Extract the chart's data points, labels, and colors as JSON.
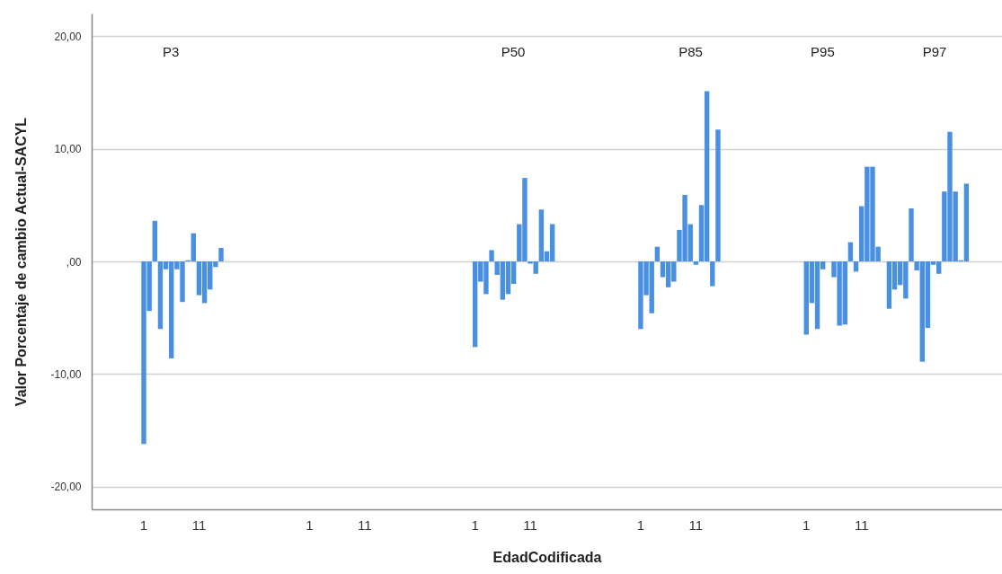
{
  "chart_data": {
    "type": "bar",
    "xlabel": "EdadCodificada",
    "ylabel": "Valor Porcentaje de cambio Actual-SACYL",
    "color": "#4a90e2",
    "categories": [
      null,
      null,
      null,
      null,
      null,
      null,
      null,
      null,
      null,
      "1",
      null,
      null,
      null,
      null,
      null,
      null,
      null,
      null,
      null,
      "11",
      null,
      null,
      null,
      null,
      null,
      null,
      null,
      null,
      null,
      null,
      null,
      null,
      null,
      null,
      null,
      null,
      null,
      null,
      null,
      "1",
      null,
      null,
      null,
      null,
      null,
      null,
      null,
      null,
      null,
      "11",
      null,
      null,
      null,
      null,
      null,
      null,
      null,
      null,
      null,
      null,
      null,
      null,
      null,
      null,
      null,
      null,
      null,
      null,
      null,
      "1",
      null,
      null,
      null,
      null,
      null,
      null,
      null,
      null,
      null,
      "11",
      null,
      null,
      null,
      null,
      null,
      null,
      null,
      null,
      null,
      null,
      null,
      null,
      null,
      null,
      null,
      null,
      null,
      null,
      null,
      "1",
      null,
      null,
      null,
      null,
      null,
      null,
      null,
      null,
      null,
      "11",
      null,
      null,
      null,
      null,
      null,
      null,
      null,
      null,
      null,
      null,
      null,
      null,
      null,
      null,
      null,
      null,
      null,
      null,
      null,
      "1",
      null,
      null,
      null,
      null,
      null,
      null,
      null,
      null,
      null,
      "11",
      null,
      null,
      null,
      null,
      null,
      null,
      null,
      null,
      null,
      null,
      null,
      null,
      null,
      null,
      null,
      null,
      null,
      null,
      null,
      null,
      null,
      null,
      null,
      null,
      null
    ],
    "values": [
      null,
      null,
      null,
      null,
      null,
      null,
      null,
      null,
      null,
      -16.2,
      -4.4,
      3.6,
      -6.0,
      -0.7,
      -8.6,
      -0.7,
      -3.6,
      0.1,
      2.5,
      -3.0,
      -3.7,
      -2.5,
      -0.5,
      1.2,
      null,
      null,
      null,
      null,
      null,
      null,
      null,
      null,
      null,
      null,
      null,
      null,
      null,
      null,
      null,
      null,
      null,
      null,
      null,
      null,
      null,
      null,
      null,
      null,
      null,
      null,
      null,
      null,
      null,
      null,
      null,
      null,
      null,
      null,
      null,
      null,
      null,
      null,
      null,
      null,
      null,
      null,
      null,
      null,
      null,
      -7.6,
      -1.8,
      -2.9,
      1.0,
      -1.2,
      -3.4,
      -2.9,
      -2.0,
      3.3,
      7.4,
      -0.2,
      -1.1,
      4.6,
      0.9,
      3.3,
      null,
      null,
      null,
      null,
      null,
      null,
      null,
      null,
      null,
      null,
      null,
      null,
      null,
      null,
      null,
      -6.0,
      -3.0,
      -4.6,
      1.3,
      -1.4,
      -2.3,
      -1.8,
      2.8,
      5.9,
      3.3,
      -0.3,
      5.0,
      15.1,
      -2.2,
      11.7,
      null,
      null,
      null,
      null,
      null,
      null,
      null,
      null,
      null,
      null,
      null,
      null,
      null,
      null,
      null,
      -6.5,
      -3.7,
      -6.0,
      -0.7,
      null,
      -1.4,
      -5.7,
      -5.6,
      1.7,
      -0.9,
      4.9,
      8.4,
      8.4,
      1.3,
      null,
      -4.2,
      -2.5,
      -2.1,
      -3.3,
      4.7,
      -0.8,
      -8.9,
      -5.9,
      -0.3,
      -1.1,
      6.2,
      11.5,
      6.2,
      0.1,
      6.9,
      null,
      null,
      null,
      null,
      null,
      null
    ],
    "ylim": [
      -22,
      22
    ],
    "yticks": [
      {
        "value": -20,
        "label": "-20,00"
      },
      {
        "value": -10,
        "label": "-10,00"
      },
      {
        "value": 0,
        "label": ",00"
      },
      {
        "value": 10,
        "label": "10,00"
      },
      {
        "value": 20,
        "label": "20,00"
      }
    ],
    "grid": "y",
    "annotations": [
      "P3",
      "P50",
      "P85",
      "P95",
      "P97"
    ]
  }
}
